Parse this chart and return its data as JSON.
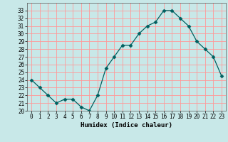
{
  "x": [
    0,
    1,
    2,
    3,
    4,
    5,
    6,
    7,
    8,
    9,
    10,
    11,
    12,
    13,
    14,
    15,
    16,
    17,
    18,
    19,
    20,
    21,
    22,
    23
  ],
  "y": [
    24,
    23,
    22,
    21,
    21.5,
    21.5,
    20.5,
    20,
    22,
    25.5,
    27,
    28.5,
    28.5,
    30,
    31,
    31.5,
    33,
    33,
    32,
    31,
    29,
    28,
    27,
    24.5
  ],
  "line_color": "#006060",
  "marker": "D",
  "marker_size": 2.5,
  "bg_color": "#c8e8e8",
  "grid_color": "#ff9999",
  "xlabel": "Humidex (Indice chaleur)",
  "ylim": [
    20,
    34
  ],
  "xlim": [
    -0.5,
    23.5
  ],
  "yticks": [
    20,
    21,
    22,
    23,
    24,
    25,
    26,
    27,
    28,
    29,
    30,
    31,
    32,
    33
  ],
  "xticks": [
    0,
    1,
    2,
    3,
    4,
    5,
    6,
    7,
    8,
    9,
    10,
    11,
    12,
    13,
    14,
    15,
    16,
    17,
    18,
    19,
    20,
    21,
    22,
    23
  ],
  "label_fontsize": 6.5,
  "tick_fontsize": 5.5
}
